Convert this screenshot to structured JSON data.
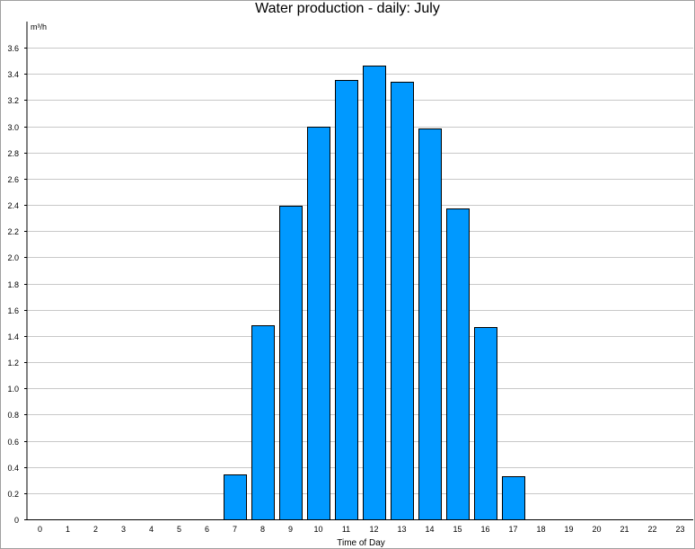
{
  "chart_data": {
    "type": "bar",
    "title": "Water production - daily: July",
    "ylabel": "m³/h",
    "xlabel": "Time of Day",
    "categories": [
      "0",
      "1",
      "2",
      "3",
      "4",
      "5",
      "6",
      "7",
      "8",
      "9",
      "10",
      "11",
      "12",
      "13",
      "14",
      "15",
      "16",
      "17",
      "18",
      "19",
      "20",
      "21",
      "22",
      "23"
    ],
    "values": [
      0,
      0,
      0,
      0,
      0,
      0,
      0,
      0.34,
      1.48,
      2.39,
      3.0,
      3.35,
      3.46,
      3.34,
      2.98,
      2.37,
      1.47,
      0.33,
      0,
      0,
      0,
      0,
      0,
      0
    ],
    "yticks": [
      "0",
      "0.2",
      "0.4",
      "0.6",
      "0.8",
      "1.0",
      "1.2",
      "1.4",
      "1.6",
      "1.8",
      "2.0",
      "2.2",
      "2.4",
      "2.6",
      "2.8",
      "3.0",
      "3.2",
      "3.4",
      "3.6"
    ],
    "ylim": [
      0,
      3.6
    ],
    "grid": true,
    "colors": {
      "bar": "#0099ff",
      "bar_edge": "#000000",
      "grid": "#c8c8c8",
      "axis": "#000000"
    }
  }
}
